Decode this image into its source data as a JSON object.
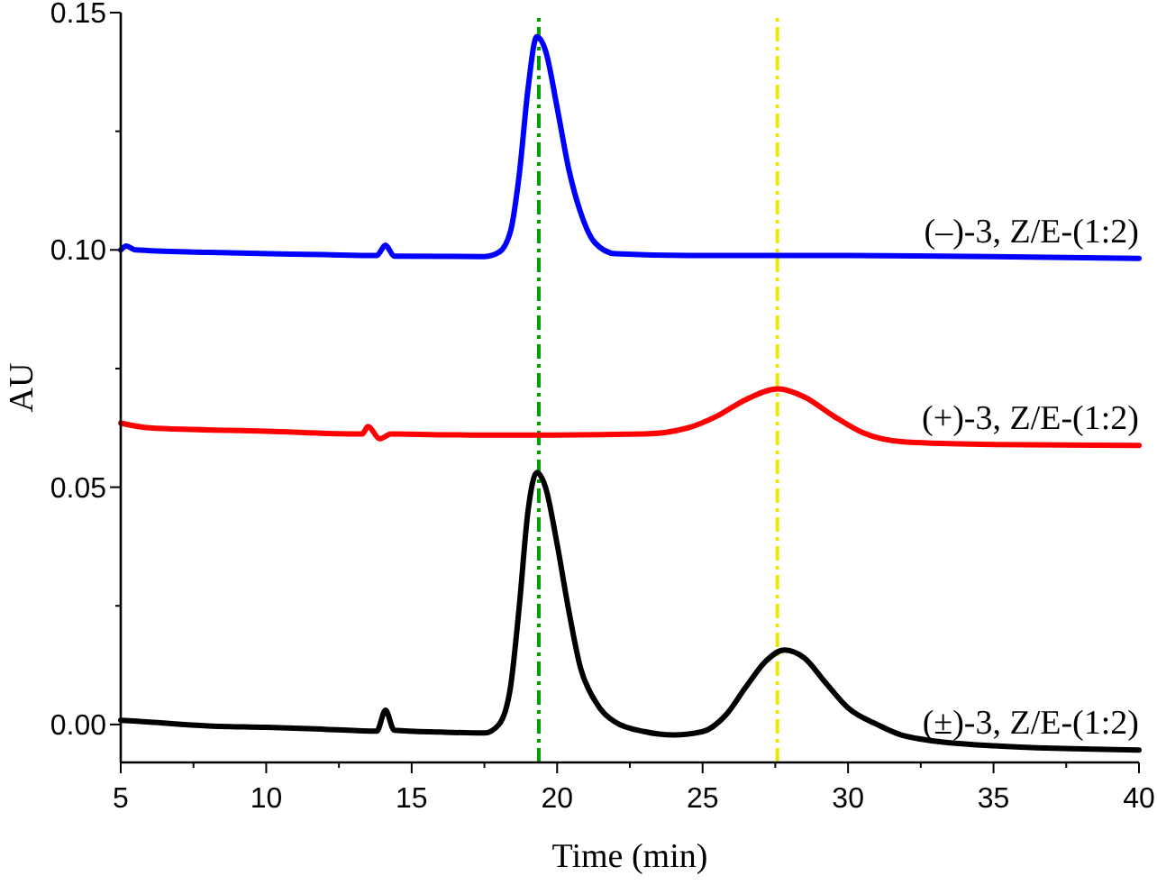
{
  "chart_data": {
    "type": "line",
    "xlabel": "Time (min)",
    "ylabel": "AU",
    "xlim": [
      5,
      40
    ],
    "ylim": [
      -0.008,
      0.15
    ],
    "xticks": [
      5,
      {
        "value": 7.5,
        "label": null
      },
      10,
      {
        "value": 12.5,
        "label": null
      },
      15,
      {
        "value": 17.5,
        "label": null
      },
      20,
      {
        "value": 22.5,
        "label": null
      },
      25,
      {
        "value": 27.5,
        "label": null
      },
      30,
      {
        "value": 32.5,
        "label": null
      },
      35,
      {
        "value": 37.5,
        "label": null
      },
      40
    ],
    "yticks": [
      {
        "value": 0,
        "label": "0.00"
      },
      {
        "value": 0.025,
        "label": null
      },
      {
        "value": 0.05,
        "label": "0.05"
      },
      {
        "value": 0.075,
        "label": null
      },
      {
        "value": 0.1,
        "label": "0.10"
      },
      {
        "value": 0.125,
        "label": null
      },
      {
        "value": 0.15,
        "label": "0.15"
      }
    ],
    "grid": false,
    "marker": "none",
    "line_style": "solid",
    "series": [
      {
        "name": "(–)-3, Z/E-(1:2)",
        "color": "#0000ff",
        "x": [
          5,
          5.2,
          5.5,
          8,
          12,
          13.8,
          14.1,
          14.4,
          17.5,
          18,
          18.4,
          18.7,
          19,
          19.3,
          19.6,
          20,
          20.4,
          20.8,
          21.3,
          22,
          25,
          30,
          35,
          40
        ],
        "values": [
          0.1,
          0.1008,
          0.1,
          0.0995,
          0.099,
          0.0988,
          0.101,
          0.0987,
          0.0986,
          0.0995,
          0.104,
          0.116,
          0.134,
          0.1449,
          0.142,
          0.13,
          0.117,
          0.108,
          0.1015,
          0.0992,
          0.0988,
          0.0988,
          0.0986,
          0.0982
        ]
      },
      {
        "name": "(+)-3, Z/E-(1:2)",
        "color": "#ff0000",
        "x": [
          5,
          6,
          10,
          13.3,
          13.5,
          13.9,
          14.3,
          17,
          20,
          23,
          24.5,
          25.5,
          26.5,
          27.6,
          28.5,
          29.5,
          30.5,
          32,
          35,
          40
        ],
        "values": [
          0.0635,
          0.0625,
          0.0618,
          0.0612,
          0.0628,
          0.0602,
          0.0612,
          0.061,
          0.061,
          0.0612,
          0.0625,
          0.065,
          0.0685,
          0.0707,
          0.069,
          0.065,
          0.0615,
          0.0595,
          0.059,
          0.0588
        ]
      },
      {
        "name": "(±)-3, Z/E-(1:2)",
        "color": "#000000",
        "x": [
          5,
          6,
          8,
          10,
          12,
          13.8,
          14.1,
          14.4,
          16,
          17.5,
          18,
          18.4,
          18.7,
          19,
          19.3,
          19.6,
          20,
          20.4,
          20.8,
          21.3,
          22,
          23,
          24,
          25,
          25.8,
          26.5,
          27.2,
          27.8,
          28.5,
          29.2,
          30,
          31,
          32,
          35,
          40
        ],
        "values": [
          0.0009,
          0.0005,
          -0.0003,
          -0.0006,
          -0.001,
          -0.0014,
          0.003,
          -0.0012,
          -0.0016,
          -0.0018,
          0,
          0.008,
          0.025,
          0.045,
          0.0531,
          0.05,
          0.038,
          0.024,
          0.012,
          0.005,
          0.0005,
          -0.0015,
          -0.0022,
          -0.0015,
          0.002,
          0.008,
          0.0135,
          0.0157,
          0.014,
          0.009,
          0.0035,
          0,
          -0.0025,
          -0.0045,
          -0.0054
        ]
      }
    ],
    "ref_lines": [
      {
        "axis": "x",
        "value": 19.37,
        "color": "#00a000",
        "line_style": "dashed"
      },
      {
        "axis": "x",
        "value": 27.57,
        "color": "#e8e800",
        "line_style": "dashed"
      }
    ]
  }
}
